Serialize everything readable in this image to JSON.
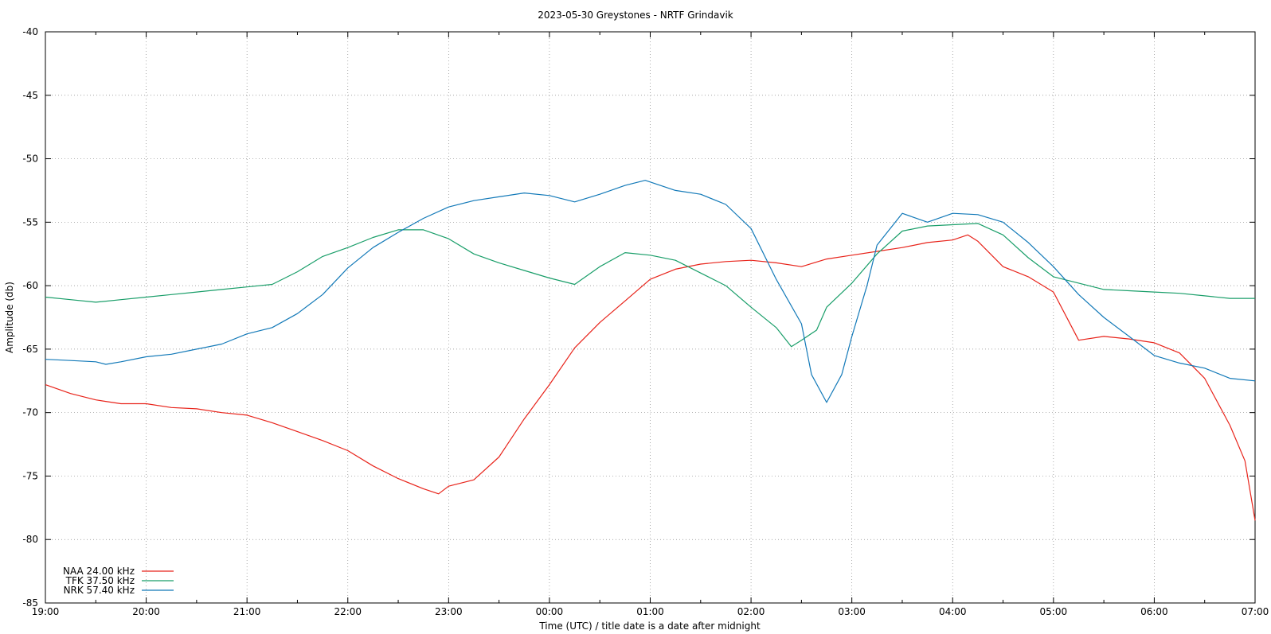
{
  "chart_data": {
    "type": "line",
    "title": "2023-05-30 Greystones - NRTF Grindavik",
    "xlabel": "Time (UTC) / title date is a date after midnight",
    "ylabel": "Amplitude (db)",
    "x_tick_labels": [
      "19:00",
      "20:00",
      "21:00",
      "22:00",
      "23:00",
      "00:00",
      "01:00",
      "02:00",
      "03:00",
      "04:00",
      "05:00",
      "06:00",
      "07:00"
    ],
    "y_ticks": [
      -40,
      -45,
      -50,
      -55,
      -60,
      -65,
      -70,
      -75,
      -80,
      -85
    ],
    "xlim_hours": [
      0,
      12
    ],
    "ylim": [
      -85,
      -40
    ],
    "grid": true,
    "legend_position": "bottom-left",
    "series": [
      {
        "name": "NAA 24.00 kHz",
        "color": "#e8231a",
        "points": [
          [
            0.0,
            -67.8
          ],
          [
            0.25,
            -68.5
          ],
          [
            0.5,
            -69.0
          ],
          [
            0.75,
            -69.3
          ],
          [
            1.0,
            -69.3
          ],
          [
            1.25,
            -69.6
          ],
          [
            1.5,
            -69.7
          ],
          [
            1.75,
            -70.0
          ],
          [
            2.0,
            -70.2
          ],
          [
            2.25,
            -70.8
          ],
          [
            2.5,
            -71.5
          ],
          [
            2.75,
            -72.2
          ],
          [
            3.0,
            -73.0
          ],
          [
            3.25,
            -74.2
          ],
          [
            3.5,
            -75.2
          ],
          [
            3.75,
            -76.0
          ],
          [
            3.9,
            -76.4
          ],
          [
            4.0,
            -75.8
          ],
          [
            4.25,
            -75.3
          ],
          [
            4.5,
            -73.5
          ],
          [
            4.75,
            -70.5
          ],
          [
            5.0,
            -67.8
          ],
          [
            5.25,
            -64.9
          ],
          [
            5.5,
            -62.9
          ],
          [
            5.75,
            -61.2
          ],
          [
            6.0,
            -59.5
          ],
          [
            6.25,
            -58.7
          ],
          [
            6.5,
            -58.3
          ],
          [
            6.75,
            -58.1
          ],
          [
            7.0,
            -58.0
          ],
          [
            7.25,
            -58.2
          ],
          [
            7.5,
            -58.5
          ],
          [
            7.75,
            -57.9
          ],
          [
            8.0,
            -57.6
          ],
          [
            8.25,
            -57.3
          ],
          [
            8.5,
            -57.0
          ],
          [
            8.75,
            -56.6
          ],
          [
            9.0,
            -56.4
          ],
          [
            9.15,
            -56.0
          ],
          [
            9.25,
            -56.5
          ],
          [
            9.5,
            -58.5
          ],
          [
            9.75,
            -59.3
          ],
          [
            10.0,
            -60.5
          ],
          [
            10.25,
            -64.3
          ],
          [
            10.5,
            -64.0
          ],
          [
            10.75,
            -64.2
          ],
          [
            11.0,
            -64.5
          ],
          [
            11.25,
            -65.3
          ],
          [
            11.5,
            -67.3
          ],
          [
            11.75,
            -71.0
          ],
          [
            11.9,
            -73.8
          ],
          [
            12.0,
            -78.5
          ]
        ]
      },
      {
        "name": "TFK 37.50 kHz",
        "color": "#199e69",
        "points": [
          [
            0.0,
            -60.9
          ],
          [
            0.25,
            -61.1
          ],
          [
            0.5,
            -61.3
          ],
          [
            0.75,
            -61.1
          ],
          [
            1.0,
            -60.9
          ],
          [
            1.25,
            -60.7
          ],
          [
            1.5,
            -60.5
          ],
          [
            1.75,
            -60.3
          ],
          [
            2.0,
            -60.1
          ],
          [
            2.25,
            -59.9
          ],
          [
            2.5,
            -58.9
          ],
          [
            2.75,
            -57.7
          ],
          [
            3.0,
            -57.0
          ],
          [
            3.25,
            -56.2
          ],
          [
            3.5,
            -55.6
          ],
          [
            3.75,
            -55.6
          ],
          [
            4.0,
            -56.3
          ],
          [
            4.25,
            -57.5
          ],
          [
            4.5,
            -58.2
          ],
          [
            4.75,
            -58.8
          ],
          [
            5.0,
            -59.4
          ],
          [
            5.25,
            -59.9
          ],
          [
            5.5,
            -58.5
          ],
          [
            5.75,
            -57.4
          ],
          [
            6.0,
            -57.6
          ],
          [
            6.25,
            -58.0
          ],
          [
            6.5,
            -59.0
          ],
          [
            6.75,
            -60.0
          ],
          [
            7.0,
            -61.7
          ],
          [
            7.25,
            -63.3
          ],
          [
            7.4,
            -64.8
          ],
          [
            7.5,
            -64.3
          ],
          [
            7.65,
            -63.5
          ],
          [
            7.75,
            -61.7
          ],
          [
            8.0,
            -59.8
          ],
          [
            8.25,
            -57.5
          ],
          [
            8.5,
            -55.7
          ],
          [
            8.75,
            -55.3
          ],
          [
            9.0,
            -55.2
          ],
          [
            9.25,
            -55.1
          ],
          [
            9.5,
            -56.0
          ],
          [
            9.75,
            -57.8
          ],
          [
            10.0,
            -59.3
          ],
          [
            10.25,
            -59.8
          ],
          [
            10.5,
            -60.3
          ],
          [
            10.75,
            -60.4
          ],
          [
            11.0,
            -60.5
          ],
          [
            11.25,
            -60.6
          ],
          [
            11.5,
            -60.8
          ],
          [
            11.75,
            -61.0
          ],
          [
            12.0,
            -61.0
          ]
        ]
      },
      {
        "name": "NRK 57.40 kHz",
        "color": "#1279b8",
        "points": [
          [
            0.0,
            -65.8
          ],
          [
            0.25,
            -65.9
          ],
          [
            0.5,
            -66.0
          ],
          [
            0.6,
            -66.2
          ],
          [
            0.75,
            -66.0
          ],
          [
            1.0,
            -65.6
          ],
          [
            1.25,
            -65.4
          ],
          [
            1.5,
            -65.0
          ],
          [
            1.75,
            -64.6
          ],
          [
            2.0,
            -63.8
          ],
          [
            2.25,
            -63.3
          ],
          [
            2.5,
            -62.2
          ],
          [
            2.75,
            -60.7
          ],
          [
            3.0,
            -58.6
          ],
          [
            3.25,
            -57.0
          ],
          [
            3.5,
            -55.8
          ],
          [
            3.75,
            -54.7
          ],
          [
            4.0,
            -53.8
          ],
          [
            4.25,
            -53.3
          ],
          [
            4.5,
            -53.0
          ],
          [
            4.75,
            -52.7
          ],
          [
            5.0,
            -52.9
          ],
          [
            5.25,
            -53.4
          ],
          [
            5.5,
            -52.8
          ],
          [
            5.75,
            -52.1
          ],
          [
            5.95,
            -51.7
          ],
          [
            6.25,
            -52.5
          ],
          [
            6.5,
            -52.8
          ],
          [
            6.75,
            -53.6
          ],
          [
            7.0,
            -55.5
          ],
          [
            7.25,
            -59.5
          ],
          [
            7.5,
            -63.0
          ],
          [
            7.6,
            -67.0
          ],
          [
            7.75,
            -69.2
          ],
          [
            7.9,
            -67.0
          ],
          [
            8.0,
            -64.0
          ],
          [
            8.15,
            -60.0
          ],
          [
            8.25,
            -56.8
          ],
          [
            8.5,
            -54.3
          ],
          [
            8.75,
            -55.0
          ],
          [
            9.0,
            -54.3
          ],
          [
            9.25,
            -54.4
          ],
          [
            9.5,
            -55.0
          ],
          [
            9.75,
            -56.6
          ],
          [
            10.0,
            -58.5
          ],
          [
            10.25,
            -60.7
          ],
          [
            10.5,
            -62.5
          ],
          [
            10.75,
            -64.0
          ],
          [
            11.0,
            -65.5
          ],
          [
            11.25,
            -66.1
          ],
          [
            11.5,
            -66.5
          ],
          [
            11.75,
            -67.3
          ],
          [
            12.0,
            -67.5
          ]
        ]
      }
    ]
  }
}
